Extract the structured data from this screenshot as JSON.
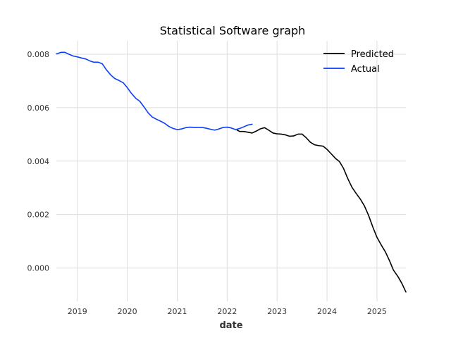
{
  "chart_data": {
    "type": "line",
    "title": "Statistical Software graph",
    "xlabel": "date",
    "ylabel": "",
    "xlim": [
      2018.58,
      2025.58
    ],
    "ylim": [
      -0.00125,
      0.0085
    ],
    "x_ticks": [
      {
        "value": 2019,
        "label": "2019"
      },
      {
        "value": 2020,
        "label": "2020"
      },
      {
        "value": 2021,
        "label": "2021"
      },
      {
        "value": 2022,
        "label": "2022"
      },
      {
        "value": 2023,
        "label": "2023"
      },
      {
        "value": 2024,
        "label": "2024"
      },
      {
        "value": 2025,
        "label": "2025"
      }
    ],
    "y_ticks": [
      {
        "value": 0.0,
        "label": "0.000"
      },
      {
        "value": 0.002,
        "label": "0.002"
      },
      {
        "value": 0.004,
        "label": "0.004"
      },
      {
        "value": 0.006,
        "label": "0.006"
      },
      {
        "value": 0.008,
        "label": "0.008"
      }
    ],
    "grid": true,
    "legend_position": "top-right",
    "series": [
      {
        "name": "Predicted",
        "color": "#000000",
        "x": [
          2022.2,
          2022.25,
          2022.33,
          2022.42,
          2022.5,
          2022.58,
          2022.67,
          2022.75,
          2022.83,
          2022.92,
          2023.0,
          2023.08,
          2023.17,
          2023.25,
          2023.33,
          2023.42,
          2023.5,
          2023.58,
          2023.67,
          2023.75,
          2023.83,
          2023.92,
          2024.0,
          2024.08,
          2024.17,
          2024.25,
          2024.33,
          2024.42,
          2024.5,
          2024.58,
          2024.67,
          2024.75,
          2024.83,
          2024.92,
          2025.0,
          2025.08,
          2025.17,
          2025.25,
          2025.33,
          2025.42,
          2025.5,
          2025.58
        ],
        "y": [
          0.00516,
          0.00511,
          0.00511,
          0.00508,
          0.00505,
          0.00512,
          0.00521,
          0.00525,
          0.00516,
          0.00505,
          0.00502,
          0.00501,
          0.00498,
          0.00493,
          0.00494,
          0.00501,
          0.00501,
          0.00488,
          0.0047,
          0.00461,
          0.00458,
          0.00456,
          0.00444,
          0.00428,
          0.0041,
          0.00398,
          0.00373,
          0.00333,
          0.00302,
          0.0028,
          0.00257,
          0.00232,
          0.00198,
          0.00152,
          0.00115,
          0.00088,
          0.0006,
          0.00028,
          -8e-05,
          -0.00032,
          -0.00058,
          -0.0009
        ]
      },
      {
        "name": "Actual",
        "color": "#0a3df5",
        "x": [
          2018.58,
          2018.67,
          2018.75,
          2018.83,
          2018.92,
          2019.0,
          2019.08,
          2019.17,
          2019.25,
          2019.33,
          2019.42,
          2019.5,
          2019.58,
          2019.67,
          2019.75,
          2019.83,
          2019.92,
          2020.0,
          2020.08,
          2020.17,
          2020.25,
          2020.33,
          2020.42,
          2020.5,
          2020.58,
          2020.67,
          2020.75,
          2020.83,
          2020.92,
          2021.0,
          2021.08,
          2021.17,
          2021.25,
          2021.33,
          2021.42,
          2021.5,
          2021.58,
          2021.67,
          2021.75,
          2021.83,
          2021.92,
          2022.0,
          2022.08,
          2022.17,
          2022.25,
          2022.33,
          2022.42,
          2022.5
        ],
        "y": [
          0.00801,
          0.00807,
          0.00807,
          0.008,
          0.00793,
          0.0079,
          0.00786,
          0.00782,
          0.00775,
          0.0077,
          0.0077,
          0.00764,
          0.00742,
          0.00722,
          0.00709,
          0.00702,
          0.00693,
          0.00675,
          0.00654,
          0.00635,
          0.00624,
          0.00604,
          0.0058,
          0.00565,
          0.00557,
          0.00549,
          0.00541,
          0.0053,
          0.00522,
          0.00518,
          0.0052,
          0.00525,
          0.00527,
          0.00526,
          0.00526,
          0.00526,
          0.00523,
          0.00519,
          0.00516,
          0.0052,
          0.00526,
          0.00527,
          0.00524,
          0.00518,
          0.00522,
          0.00528,
          0.00535,
          0.00538
        ]
      }
    ]
  }
}
